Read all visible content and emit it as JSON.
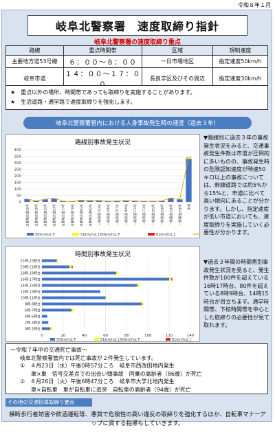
{
  "date_label": "令和８年１月",
  "title": "岐阜北警察署　速度取締り指針",
  "subtitle": "岐阜北警察署の速度取締り重点",
  "schedule": {
    "headers": [
      "路線",
      "重点時間帯",
      "区域",
      "規制速度"
    ],
    "rows": [
      [
        "主要地方道53号線",
        "６：００～８：００",
        "一日市場地区",
        "指定速度50km/h"
      ],
      [
        "岐阜市道",
        "１４：００～１７：００",
        "長良学区及びその周辺",
        "指定速度30km/h"
      ]
    ]
  },
  "notes": [
    "★　重点以外の場所、時間帯であっても取締りを実施することがあります。",
    "★　生活道路・通学路で速度取締りを強化します。"
  ],
  "banner": "岐阜北警察署管内における人身事故発生時の速度（過去３年）",
  "side_text_1": "▼路線別に過去３年の事故発生状況をみると、交通事故発生件数は市道が圧倒的に多いものの、事故発生時の危険認知速度が時速50キロ以上の事故については、幹線道路では約5%から15%と、市道に比べて高い傾向にあることが分かります。しかし、指定速度が低い市道においても、速度取締りを実施していく必要性が分かります。",
  "side_text_2": "▼過去３年間の時間帯別事故発生状況を見ると、発生件数が100件を超えている16時17時台、80件を超えている8時9時台、14時15時台が目立ちます。通学時間帯、下校時間帯を中心とした取締りの必要性が見て取れます。",
  "summary": [
    "～令和７年中の交通死亡事故～",
    "岐阜北警察署管内では死亡事故が２件発生しています。",
    "①　４月23日（水）午後0時57分ころ　岐阜市西改田地内発生",
    "　　車×車　信号交差点での出会い頭事故　同乗の高齢者（86歳）が死亡",
    "②　８月26日（火）午後6時47分ころ　岐阜市大学北地内発生",
    "　　車×自転車　車が自転車に追突　自転車の高齢者（94歳）が死亡"
  ],
  "other_tag": "その他の交通指導取締り要点",
  "footer": "横断歩行者妨害や飲酒運転等、悪質で危険性の高い違反の取締りを強化するほか、自転車マナーアップに資する指導もしていきます。",
  "colors": {
    "blue": "#4472c4",
    "yellow": "#ffff00",
    "red": "#e02020",
    "orange": "#ffa500"
  },
  "chart_data": [
    {
      "type": "bar",
      "title": "路線別事故発生状況",
      "categories": [
        "主要地方道15号",
        "主要地方道18号",
        "主要地方道31号",
        "主要地方道53号",
        "主要地方道77号",
        "主要地方道79号",
        "主要地方道91号",
        "主要地方道92号",
        "一般県道153号",
        "一般県道156号",
        "一般県道157号",
        "一般県道169号",
        "一般県道172号",
        "一般県道173号",
        "一般県道191号",
        "一般県道228号",
        "一般国道156号",
        "一般国道256号",
        "市道"
      ],
      "series": [
        {
          "name": "50km/h以下",
          "values": [
            22,
            8,
            20,
            25,
            6,
            4,
            14,
            10,
            12,
            6,
            8,
            10,
            8,
            6,
            6,
            8,
            28,
            20,
            330
          ]
        },
        {
          "name": "51km/h以上60km/h以下",
          "values": [
            1,
            0,
            1,
            2,
            0,
            0,
            0,
            1,
            0,
            0,
            0,
            1,
            0,
            0,
            0,
            0,
            2,
            1,
            8
          ]
        },
        {
          "name": "61km/h以上",
          "values": [
            0,
            0,
            0,
            1,
            0,
            0,
            0,
            0,
            0,
            0,
            0,
            0,
            0,
            0,
            0,
            0,
            1,
            0,
            2
          ]
        }
      ],
      "line_series": {
        "name": "発生件数",
        "values": [
          23,
          8,
          21,
          28,
          6,
          4,
          14,
          11,
          12,
          6,
          8,
          11,
          8,
          6,
          6,
          8,
          31,
          21,
          340
        ]
      },
      "ylim": [
        0,
        400
      ],
      "yticks": [
        0,
        50,
        100,
        150,
        200,
        250,
        300,
        350,
        400
      ]
    },
    {
      "type": "bar",
      "title": "時間別事故発生状況",
      "orientation": "horizontal",
      "categories": [
        "22時-23時台",
        "20時-21時台",
        "18時-19時台",
        "16時-17時台",
        "14時-15時台",
        "12時-13時台",
        "10時-11時台",
        "8時-9時台",
        "6時-7時台",
        "4時-5時台",
        "2時-3時台",
        "0時-1時台"
      ],
      "series": [
        {
          "name": "50km/h以下",
          "values": [
            14,
            26,
            70,
            120,
            90,
            55,
            60,
            94,
            28,
            5,
            6,
            8
          ]
        },
        {
          "name": "51km/h以上60km/h以下",
          "values": [
            1,
            2,
            2,
            2,
            2,
            0,
            1,
            2,
            2,
            0,
            0,
            2
          ]
        },
        {
          "name": "61km/h以上",
          "values": [
            0,
            1,
            0,
            1,
            0,
            0,
            0,
            0,
            0,
            0,
            0,
            0
          ]
        }
      ],
      "xlim": [
        0,
        140
      ],
      "xticks": [
        0,
        20,
        40,
        60,
        80,
        100,
        120,
        140
      ]
    }
  ]
}
